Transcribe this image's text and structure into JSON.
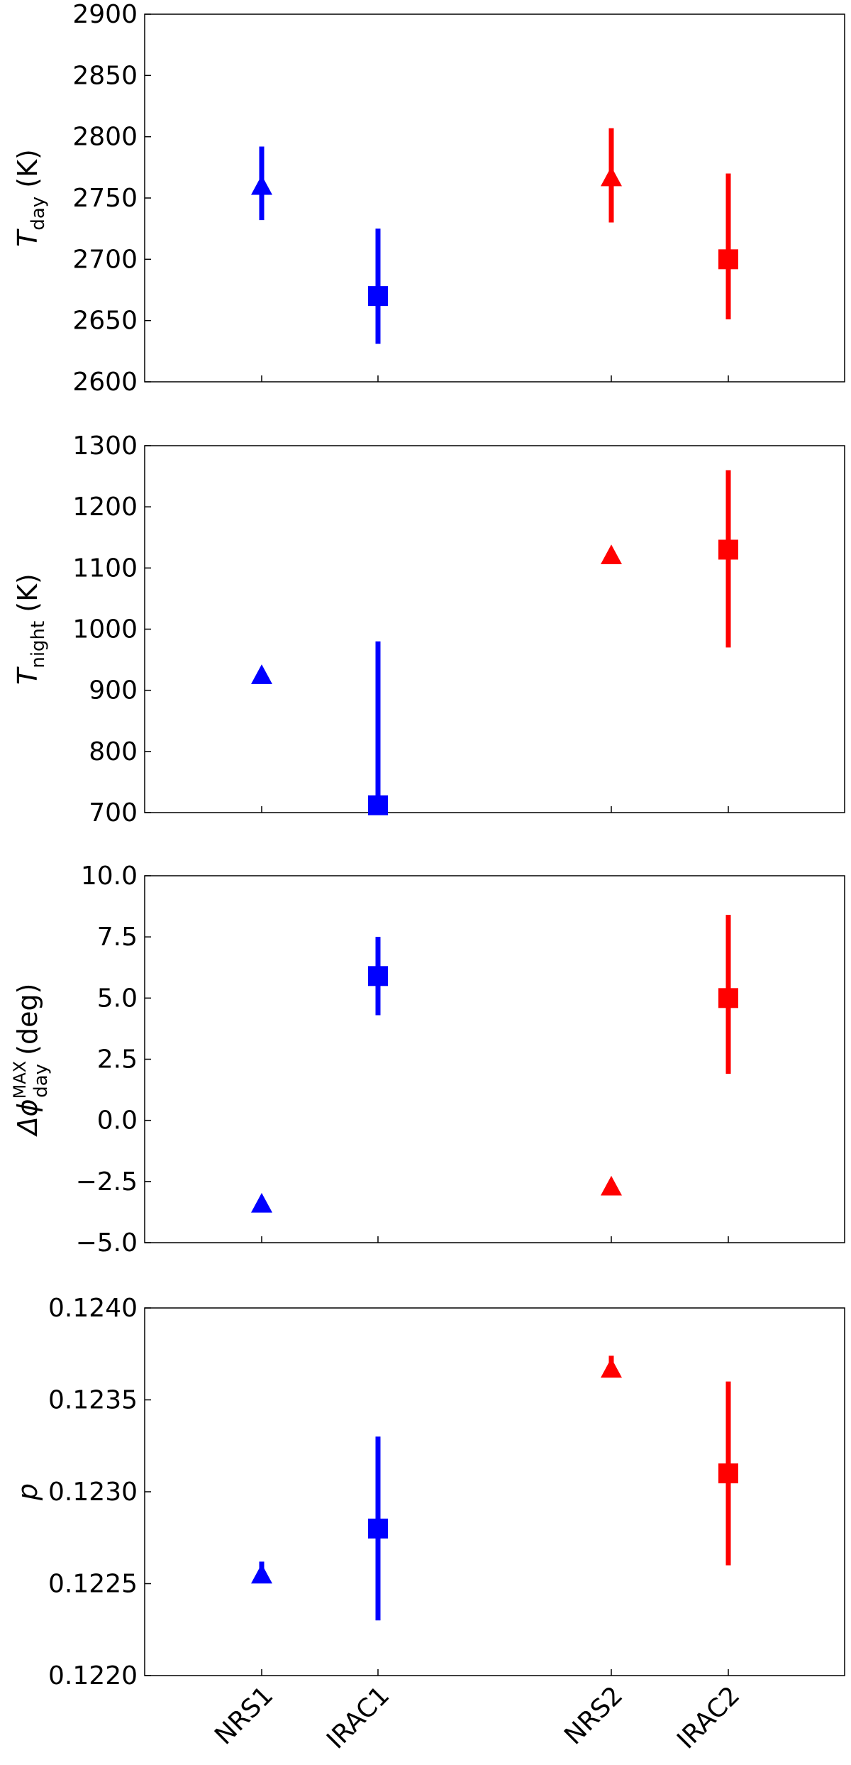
{
  "chart_data": [
    {
      "type": "scatter",
      "categories": [
        "NRS1",
        "IRAC1",
        "NRS2",
        "IRAC2"
      ],
      "ylabel": {
        "main": "T",
        "sub": "day",
        "unit": " (K)"
      },
      "ylim": [
        2600,
        2900
      ],
      "yticks": [
        "2600",
        "2650",
        "2700",
        "2750",
        "2800",
        "2850",
        "2900"
      ],
      "points": [
        {
          "category": "NRS1",
          "value": 2760,
          "err_low": 2732,
          "err_high": 2792,
          "marker": "triangle",
          "color": "#0000ff"
        },
        {
          "category": "IRAC1",
          "value": 2670,
          "err_low": 2631,
          "err_high": 2725,
          "marker": "square",
          "color": "#0000ff"
        },
        {
          "category": "NRS2",
          "value": 2767,
          "err_low": 2730,
          "err_high": 2807,
          "marker": "triangle",
          "color": "#ff0000"
        },
        {
          "category": "IRAC2",
          "value": 2700,
          "err_low": 2651,
          "err_high": 2770,
          "marker": "square",
          "color": "#ff0000"
        }
      ]
    },
    {
      "type": "scatter",
      "categories": [
        "NRS1",
        "IRAC1",
        "NRS2",
        "IRAC2"
      ],
      "ylabel": {
        "main": "T",
        "sub": "night",
        "unit": " (K)"
      },
      "ylim": [
        700,
        1300
      ],
      "yticks": [
        "700",
        "800",
        "900",
        "1000",
        "1100",
        "1200",
        "1300"
      ],
      "points": [
        {
          "category": "NRS1",
          "value": 925,
          "err_low": 925,
          "err_high": 925,
          "marker": "triangle",
          "color": "#0000ff"
        },
        {
          "category": "IRAC1",
          "value": 712,
          "err_low": 700,
          "err_high": 980,
          "marker": "square",
          "color": "#0000ff"
        },
        {
          "category": "NRS2",
          "value": 1121,
          "err_low": 1121,
          "err_high": 1121,
          "marker": "triangle",
          "color": "#ff0000"
        },
        {
          "category": "IRAC2",
          "value": 1130,
          "err_low": 970,
          "err_high": 1260,
          "marker": "square",
          "color": "#ff0000"
        }
      ]
    },
    {
      "type": "scatter",
      "categories": [
        "NRS1",
        "IRAC1",
        "NRS2",
        "IRAC2"
      ],
      "ylabel": {
        "main": "Δϕ",
        "sub": "day",
        "sup": "MAX",
        "unit": " (deg)"
      },
      "ylim": [
        -5.0,
        10.0
      ],
      "yticks": [
        "−5.0",
        "−2.5",
        "0.0",
        "2.5",
        "5.0",
        "7.5",
        "10.0"
      ],
      "points": [
        {
          "category": "NRS1",
          "value": -3.4,
          "err_low": -3.4,
          "err_high": -3.4,
          "marker": "triangle",
          "color": "#0000ff"
        },
        {
          "category": "IRAC1",
          "value": 5.9,
          "err_low": 4.3,
          "err_high": 7.5,
          "marker": "square",
          "color": "#0000ff"
        },
        {
          "category": "NRS2",
          "value": -2.7,
          "err_low": -2.7,
          "err_high": -2.7,
          "marker": "triangle",
          "color": "#ff0000"
        },
        {
          "category": "IRAC2",
          "value": 5.0,
          "err_low": 1.9,
          "err_high": 8.4,
          "marker": "square",
          "color": "#ff0000"
        }
      ]
    },
    {
      "type": "scatter",
      "categories": [
        "NRS1",
        "IRAC1",
        "NRS2",
        "IRAC2"
      ],
      "ylabel": {
        "main": "p"
      },
      "ylim": [
        0.122,
        0.124
      ],
      "yticks": [
        "0.1220",
        "0.1225",
        "0.1230",
        "0.1235",
        "0.1240"
      ],
      "points": [
        {
          "category": "NRS1",
          "value": 0.12255,
          "err_low": 0.12251,
          "err_high": 0.12262,
          "marker": "triangle",
          "color": "#0000ff"
        },
        {
          "category": "IRAC1",
          "value": 0.1228,
          "err_low": 0.1223,
          "err_high": 0.1233,
          "marker": "square",
          "color": "#0000ff"
        },
        {
          "category": "NRS2",
          "value": 0.12367,
          "err_low": 0.12363,
          "err_high": 0.12374,
          "marker": "triangle",
          "color": "#ff0000"
        },
        {
          "category": "IRAC2",
          "value": 0.1231,
          "err_low": 0.1226,
          "err_high": 0.1236,
          "marker": "square",
          "color": "#ff0000"
        }
      ]
    }
  ]
}
